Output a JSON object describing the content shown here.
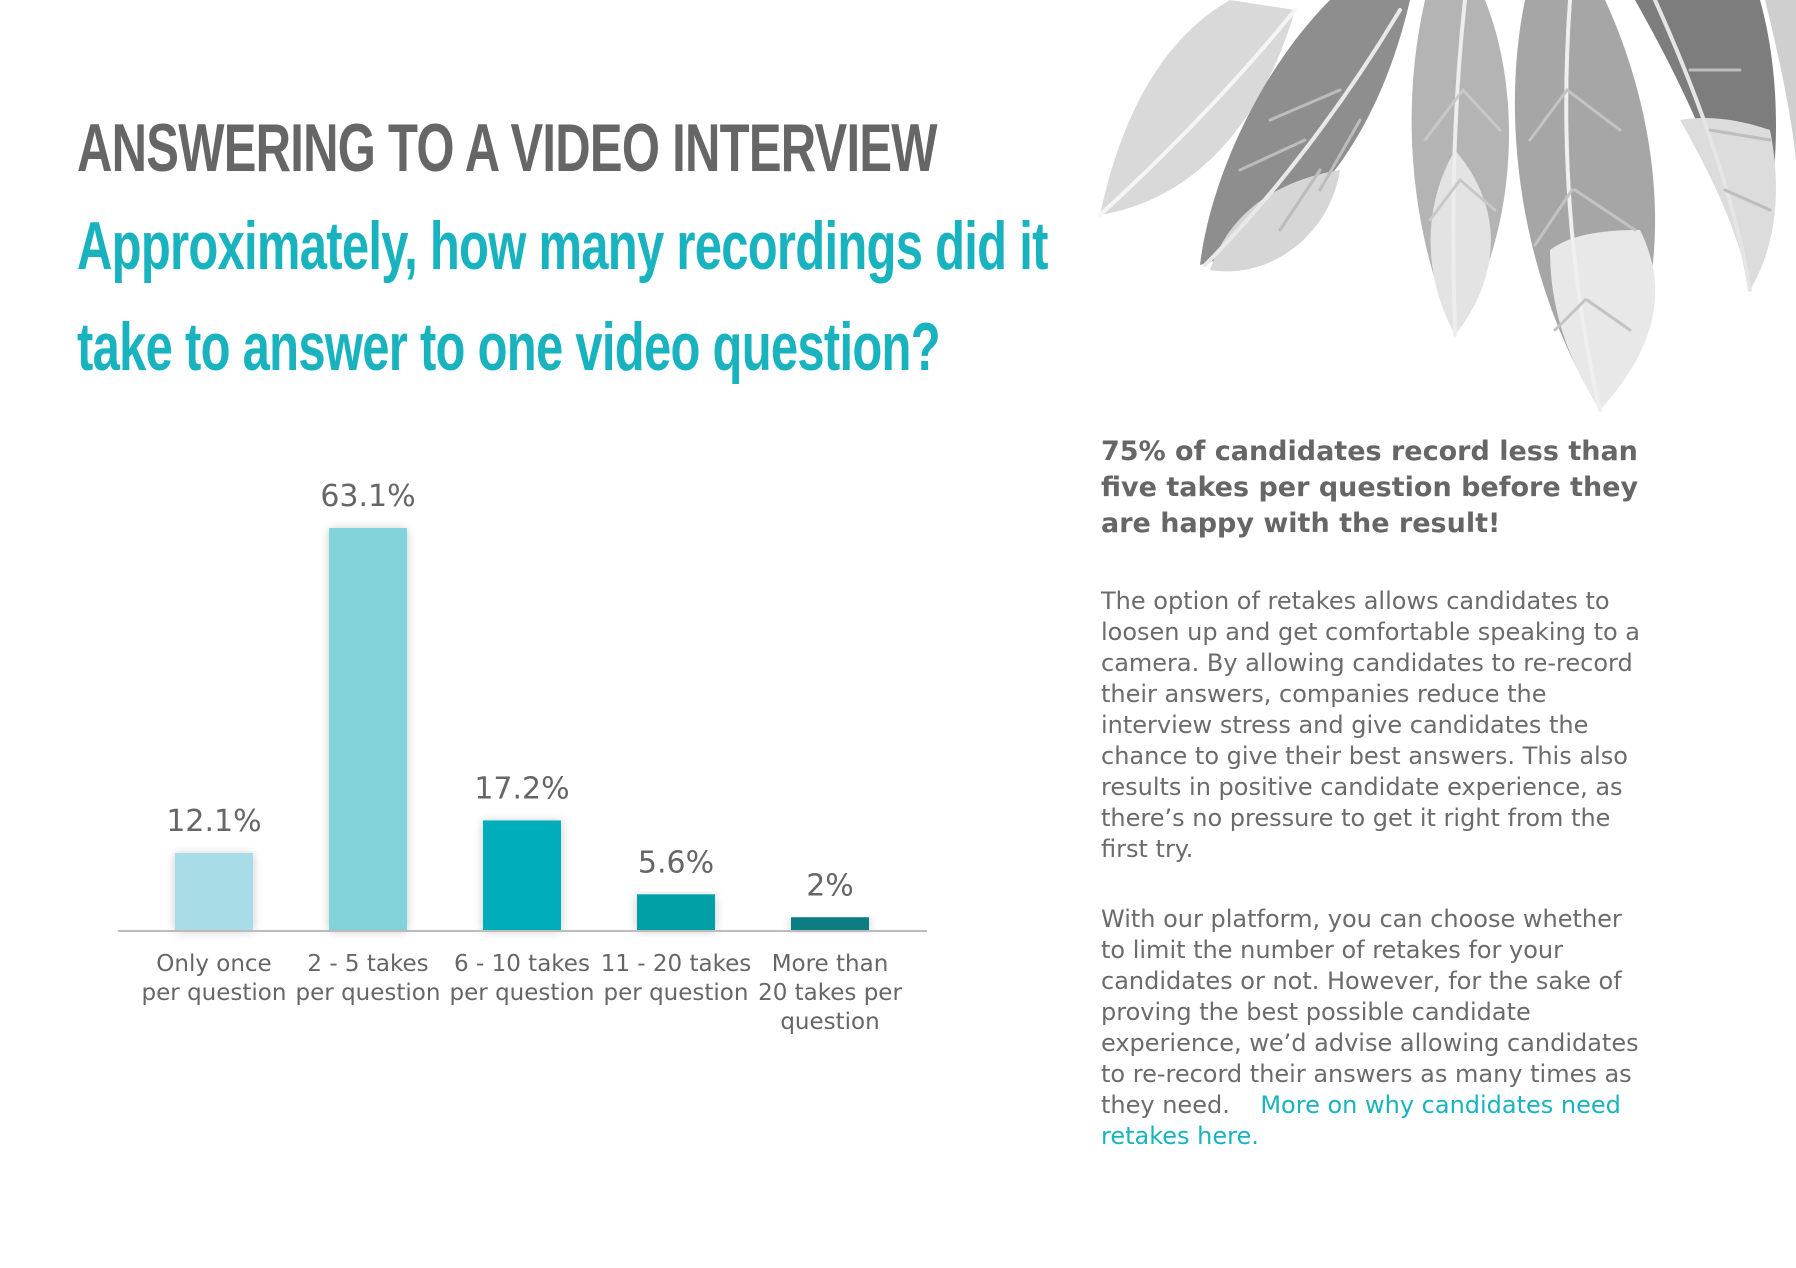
{
  "header": {
    "section_title": "ANSWERING TO A VIDEO INTERVIEW",
    "question_line_1": "Approximately, how many recordings did it",
    "question_line_2": "take to answer to one video question?"
  },
  "colors": {
    "heading_gray": "#666666",
    "accent_teal": "#19b3c0",
    "bar_1": "#a8dce6",
    "bar_2": "#83d3da",
    "bar_3": "#05adbb",
    "bar_4": "#05a0a6",
    "bar_5": "#0a7d84"
  },
  "chart_data": {
    "type": "bar",
    "categories": [
      [
        "Only once",
        "per question"
      ],
      [
        "2 - 5 takes",
        "per question"
      ],
      [
        "6 - 10 takes",
        "per question"
      ],
      [
        "11 - 20 takes",
        "per question"
      ],
      [
        "More than",
        "20 takes per",
        "question"
      ]
    ],
    "values": [
      12.1,
      63.1,
      17.2,
      5.6,
      2
    ],
    "value_labels": [
      "12.1%",
      "63.1%",
      "17.2%",
      "5.6%",
      "2%"
    ],
    "bar_colors": [
      "#a8dce6",
      "#83d3da",
      "#05adbb",
      "#05a0a6",
      "#0a7d84"
    ],
    "ylim": [
      0,
      63.1
    ],
    "grid": false
  },
  "sidebar": {
    "key_insight": "75% of candidates record less than five takes per question before they are happy with the result!",
    "paragraph_1": "The option of retakes allows candidates to loosen up and get comfortable speaking to a camera. By allowing candidates to re-record their answers, companies reduce the interview stress and give candidates the chance to give their best answers. This also results in positive candidate experience, as there’s no pressure to get it right from the first try.",
    "paragraph_2": "With our platform, you can choose whether to limit the number of retakes for your candidates or not. However, for the sake of proving the best possible candidate experience, we’d advise allowing candidates to re-record their answers as many times as they need.",
    "link_text": "More on why candidates need retakes here."
  }
}
